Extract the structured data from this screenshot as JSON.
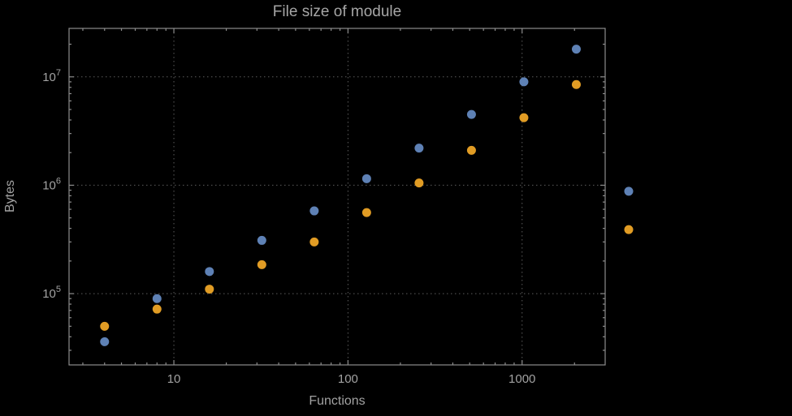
{
  "title": "File size of module",
  "chart_data": {
    "type": "scatter",
    "title": "File size of module",
    "xlabel": "Functions",
    "ylabel": "Bytes",
    "x_scale": "log",
    "y_scale": "log",
    "grid": "dotted",
    "legend": "none",
    "x": [
      4,
      8,
      16,
      32,
      64,
      128,
      256,
      512,
      1024,
      2048,
      4096
    ],
    "series": [
      {
        "name": "series-blue",
        "color": "#5e81b5",
        "values": [
          36000,
          90000,
          160000,
          310000,
          580000,
          1150000,
          2200000,
          4500000,
          9000000,
          18000000,
          880000
        ]
      },
      {
        "name": "series-orange",
        "color": "#e19c24",
        "values": [
          50000,
          72000,
          110000,
          185000,
          300000,
          560000,
          1050000,
          2100000,
          4200000,
          8500000,
          390000
        ]
      }
    ],
    "x_ticks": [
      10,
      100,
      1000
    ],
    "x_tick_labels": [
      "10",
      "100",
      "1000"
    ],
    "y_ticks": [
      100000,
      1000000,
      10000000
    ],
    "y_tick_base": "10",
    "y_tick_exponents": [
      5,
      6,
      7
    ],
    "xlim": [
      2.5,
      3000
    ],
    "ylim": [
      22000,
      28000000
    ],
    "frame_color": "#8c8c8c",
    "grid_color": "#5c5c5c",
    "text_color": "#a2a2a2",
    "background": "#000000",
    "point_radius": 5.5
  }
}
